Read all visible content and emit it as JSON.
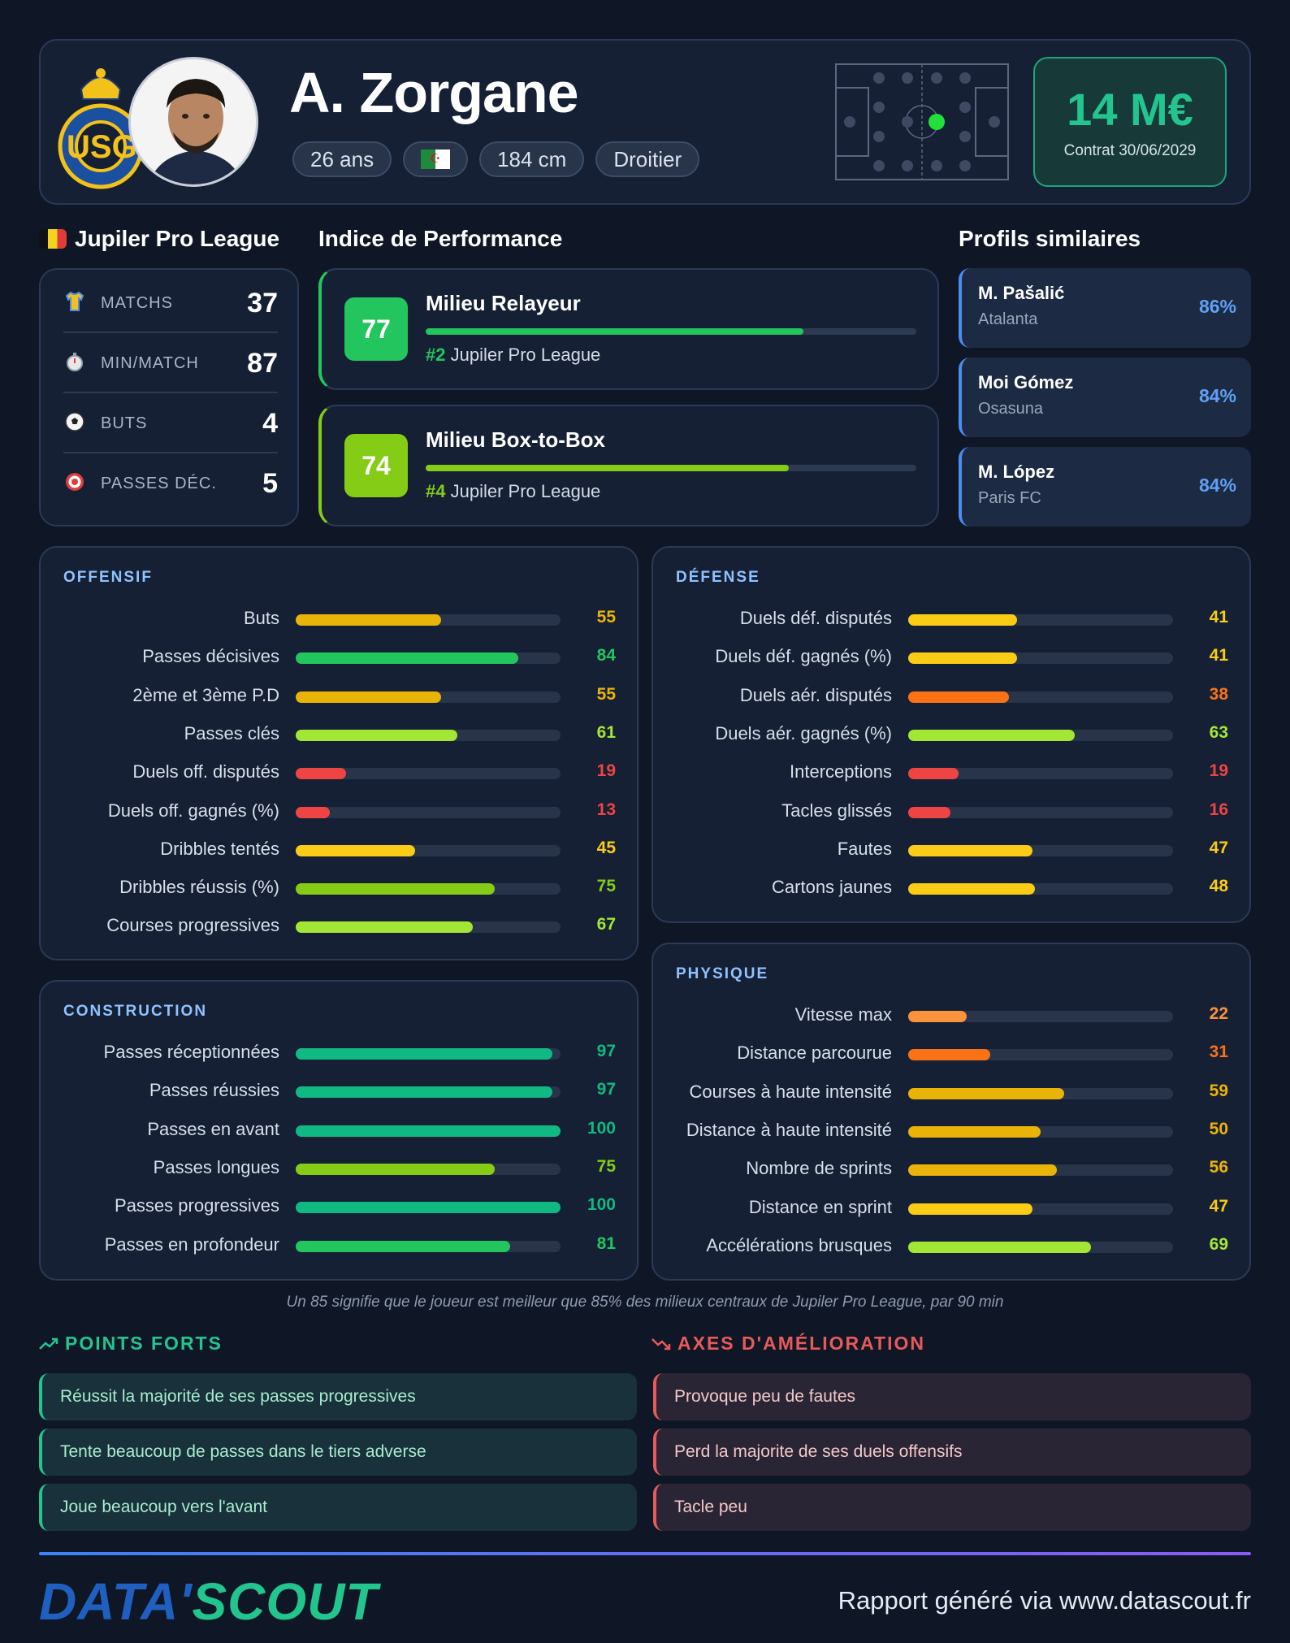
{
  "header": {
    "player_name": "A. Zorgane",
    "age": "26 ans",
    "nationality_flag": "flag-algeria",
    "height": "184 cm",
    "foot": "Droitier",
    "market_value": "14 M€",
    "contract": "Contrat 30/06/2029",
    "club_logo": "union-saint-gilloise-logo",
    "club_logo_text": "USG"
  },
  "league": {
    "name": "Jupiler Pro League",
    "flag": "flag-belgium",
    "stats": [
      {
        "icon": "shirt-icon",
        "label": "MATCHS",
        "value": "37"
      },
      {
        "icon": "stopwatch-icon",
        "label": "MIN/MATCH",
        "value": "87"
      },
      {
        "icon": "ball-icon",
        "label": "BUTS",
        "value": "4"
      },
      {
        "icon": "target-icon",
        "label": "PASSES DÉC.",
        "value": "5"
      }
    ]
  },
  "performance": {
    "title": "Indice de Performance",
    "items": [
      {
        "score": "77",
        "role": "Milieu Relayeur",
        "rank": "#2",
        "league": "Jupiler Pro League",
        "level": 77,
        "color": "#22c55e"
      },
      {
        "score": "74",
        "role": "Milieu Box-to-Box",
        "rank": "#4",
        "league": "Jupiler Pro League",
        "level": 74,
        "color": "#84cc16"
      }
    ]
  },
  "similar": {
    "title": "Profils similaires",
    "items": [
      {
        "name": "M. Pašalić",
        "club": "Atalanta",
        "pct": "86%"
      },
      {
        "name": "Moi Gómez",
        "club": "Osasuna",
        "pct": "84%"
      },
      {
        "name": "M. López",
        "club": "Paris FC",
        "pct": "84%"
      }
    ]
  },
  "panels": {
    "offensif": {
      "title": "OFFENSIF",
      "rows": [
        {
          "label": "Buts",
          "value": 55
        },
        {
          "label": "Passes décisives",
          "value": 84
        },
        {
          "label": "2ème et 3ème P.D",
          "value": 55
        },
        {
          "label": "Passes clés",
          "value": 61
        },
        {
          "label": "Duels off. disputés",
          "value": 19
        },
        {
          "label": "Duels off. gagnés (%)",
          "value": 13
        },
        {
          "label": "Dribbles tentés",
          "value": 45
        },
        {
          "label": "Dribbles réussis (%)",
          "value": 75
        },
        {
          "label": "Courses progressives",
          "value": 67
        }
      ]
    },
    "defense": {
      "title": "DÉFENSE",
      "rows": [
        {
          "label": "Duels déf. disputés",
          "value": 41
        },
        {
          "label": "Duels déf. gagnés (%)",
          "value": 41
        },
        {
          "label": "Duels aér. disputés",
          "value": 38
        },
        {
          "label": "Duels aér. gagnés (%)",
          "value": 63
        },
        {
          "label": "Interceptions",
          "value": 19
        },
        {
          "label": "Tacles glissés",
          "value": 16
        },
        {
          "label": "Fautes",
          "value": 47
        },
        {
          "label": "Cartons jaunes",
          "value": 48
        }
      ]
    },
    "construction": {
      "title": "CONSTRUCTION",
      "rows": [
        {
          "label": "Passes réceptionnées",
          "value": 97
        },
        {
          "label": "Passes réussies",
          "value": 97
        },
        {
          "label": "Passes en avant",
          "value": 100
        },
        {
          "label": "Passes longues",
          "value": 75
        },
        {
          "label": "Passes progressives",
          "value": 100
        },
        {
          "label": "Passes en profondeur",
          "value": 81
        }
      ]
    },
    "physique": {
      "title": "PHYSIQUE",
      "rows": [
        {
          "label": "Vitesse max",
          "value": 22
        },
        {
          "label": "Distance parcourue",
          "value": 31
        },
        {
          "label": "Courses à haute intensité",
          "value": 59
        },
        {
          "label": "Distance à haute intensité",
          "value": 50
        },
        {
          "label": "Nombre de sprints",
          "value": 56
        },
        {
          "label": "Distance en sprint",
          "value": 47
        },
        {
          "label": "Accélérations brusques",
          "value": 69
        }
      ]
    }
  },
  "note": "Un 85 signifie que le joueur est meilleur que 85% des milieux centraux de Jupiler Pro League, par 90 min",
  "strengths": {
    "title": "POINTS FORTS",
    "icon": "trend-up-icon",
    "items": [
      "Réussit la majorité de ses passes progressives",
      "Tente beaucoup de passes dans le tiers adverse",
      "Joue beaucoup vers l'avant"
    ]
  },
  "weaknesses": {
    "title": "AXES D'AMÉLIORATION",
    "icon": "trend-down-icon",
    "items": [
      "Provoque peu de fautes",
      "Perd la majorite de ses duels offensifs",
      "Tacle peu"
    ]
  },
  "footer": {
    "logo_part1": "DATA'",
    "logo_part2": "SCOUT",
    "text": "Rapport généré via www.datascout.fr"
  }
}
